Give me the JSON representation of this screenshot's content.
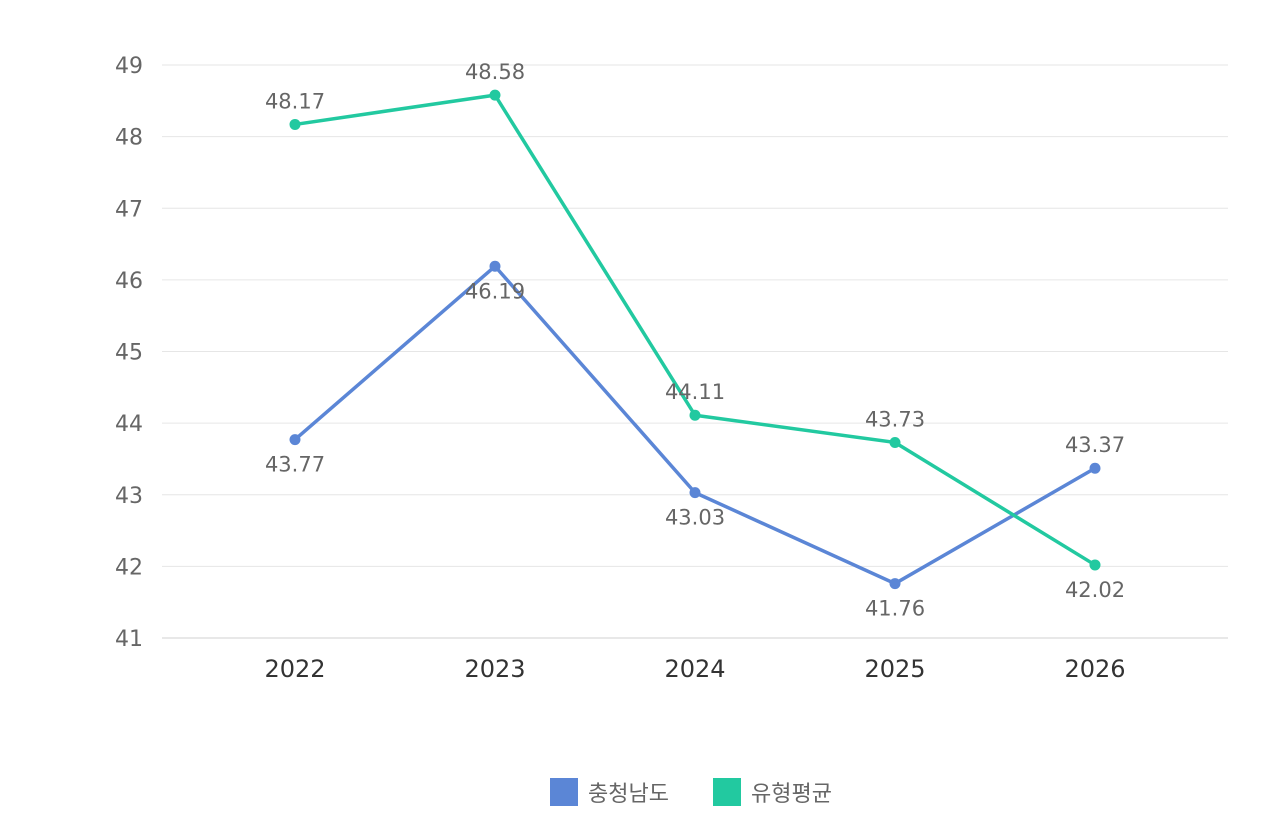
{
  "chart_data": {
    "type": "line",
    "categories": [
      "2022",
      "2023",
      "2024",
      "2025",
      "2026"
    ],
    "series": [
      {
        "name": "충청남도",
        "values": [
          43.77,
          46.19,
          43.03,
          41.76,
          43.37
        ],
        "color": "#5b86d6"
      },
      {
        "name": "유형평균",
        "values": [
          48.17,
          48.58,
          44.11,
          43.73,
          42.02
        ],
        "color": "#22c9a0"
      }
    ],
    "ylim": [
      41,
      49
    ],
    "yticks": [
      "41",
      "42",
      "43",
      "44",
      "45",
      "46",
      "47",
      "48",
      "49"
    ],
    "grid": true,
    "legend_position": "bottom-center"
  }
}
